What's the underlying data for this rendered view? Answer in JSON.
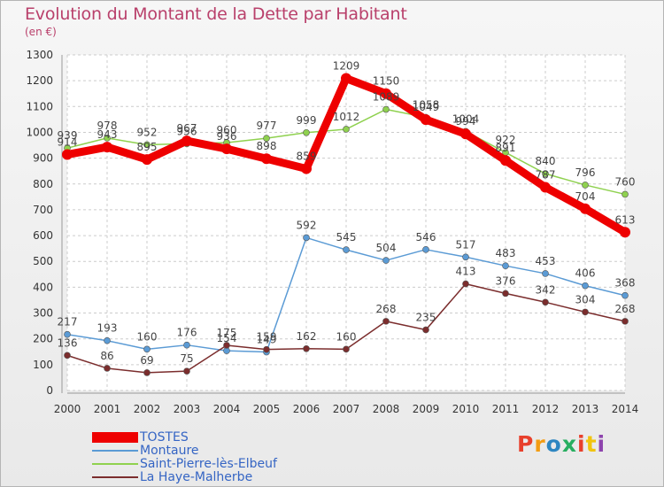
{
  "title": "Evolution du Montant de la Dette par Habitant",
  "subtitle": "(en €)",
  "logo": {
    "text": "Proxiti",
    "colors": [
      "#e8402c",
      "#f39c12",
      "#2e86c1",
      "#27ae60",
      "#e8402c",
      "#f1c40f",
      "#8e44ad"
    ]
  },
  "chart_data": {
    "type": "line",
    "x": [
      "2000",
      "2001",
      "2002",
      "2003",
      "2004",
      "2005",
      "2006",
      "2007",
      "2008",
      "2009",
      "2010",
      "2011",
      "2012",
      "2013",
      "2014"
    ],
    "yticks": [
      0,
      100,
      200,
      300,
      400,
      500,
      600,
      700,
      800,
      900,
      1000,
      1100,
      1200,
      1300
    ],
    "ylim": [
      0,
      1300
    ],
    "grid": true,
    "legend_position": "bottom-left",
    "series": [
      {
        "name": "TOSTES",
        "color": "#ee0000",
        "values": [
          914,
          943,
          895,
          967,
          936,
          898,
          859,
          1209,
          1150,
          1049,
          994,
          891,
          787,
          704,
          613
        ]
      },
      {
        "name": "Montaure",
        "color": "#5b9bd5",
        "values": [
          217,
          193,
          160,
          176,
          154,
          149,
          592,
          545,
          504,
          546,
          517,
          483,
          453,
          406,
          368
        ]
      },
      {
        "name": "Saint-Pierre-lès-Elbeuf",
        "color": "#8fd14f",
        "values": [
          939,
          978,
          952,
          956,
          960,
          977,
          999,
          1012,
          1089,
          1058,
          1004,
          922,
          840,
          796,
          760
        ]
      },
      {
        "name": "La Haye-Malherbe",
        "color": "#7b2d2d",
        "values": [
          136,
          86,
          69,
          75,
          175,
          159,
          162,
          160,
          268,
          235,
          413,
          376,
          342,
          304,
          268
        ]
      }
    ]
  }
}
